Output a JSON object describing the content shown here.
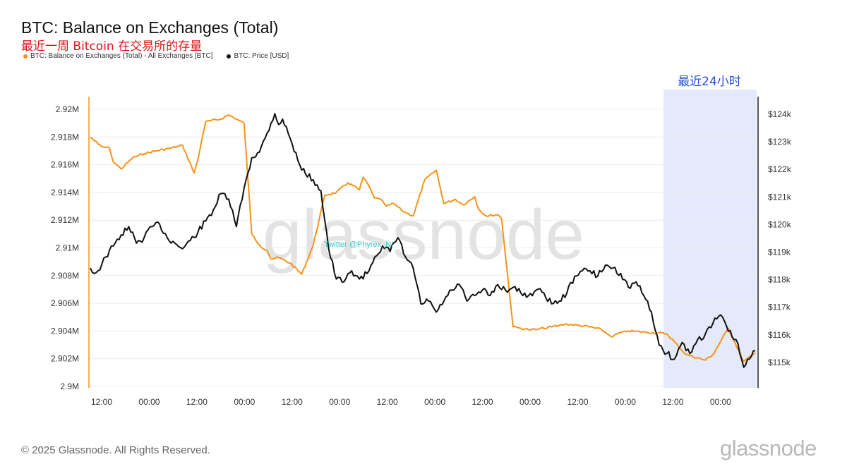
{
  "title": "BTC: Balance on Exchanges (Total)",
  "subtitle": "最近一周 Bitcoin 在交易所的存量",
  "legend": [
    {
      "label": "BTC: Balance on Exchanges (Total) - All Exchanges [BTC]",
      "color": "#f7931a"
    },
    {
      "label": "BTC: Price [USD]",
      "color": "#111111"
    }
  ],
  "highlight_label": "最近24小时",
  "watermark": "glassnode",
  "overlay_text": "Twitter @Phyrex_Ni",
  "footer": "© 2025 Glassnode. All Rights Reserved.",
  "brand": "glassnode",
  "chart_data": {
    "type": "line",
    "x_ticks": [
      "12:00",
      "00:00",
      "12:00",
      "00:00",
      "12:00",
      "00:00",
      "12:00",
      "00:00",
      "12:00",
      "00:00",
      "12:00",
      "00:00",
      "12:00",
      "00:00"
    ],
    "y_left_ticks": [
      "2.92M",
      "2.918M",
      "2.916M",
      "2.914M",
      "2.912M",
      "2.91M",
      "2.908M",
      "2.906M",
      "2.904M",
      "2.902M",
      "2.9M"
    ],
    "y_right_ticks": [
      "$124k",
      "$123k",
      "$122k",
      "$121k",
      "$120k",
      "$119k",
      "$118k",
      "$117k",
      "$116k",
      "$115k"
    ],
    "y_left_range": [
      2900000,
      2920000
    ],
    "y_right_range": [
      114100,
      124100
    ],
    "x_range_hours": [
      0,
      173
    ],
    "grid": true,
    "legend_position": "top-left",
    "series": [
      {
        "name": "BTC: Balance on Exchanges (Total) - All Exchanges [BTC]",
        "axis": "left",
        "color": "#f7931a",
        "x": [
          0,
          2,
          3,
          5,
          6,
          8,
          11,
          14,
          17,
          21,
          24,
          27,
          28,
          29,
          30,
          34,
          36,
          38,
          40,
          42,
          44,
          46,
          47,
          49,
          52,
          55,
          58,
          61,
          64,
          67,
          70,
          71,
          72,
          74,
          76,
          77,
          79,
          81,
          84,
          87,
          90,
          92,
          95,
          97,
          100,
          101,
          103,
          106,
          107,
          110,
          112,
          114,
          116,
          118,
          120,
          122,
          124,
          127,
          130,
          133,
          135,
          136,
          137,
          140,
          145,
          150,
          155,
          160,
          162,
          166,
          170,
          173
        ],
        "y": [
          2918000,
          2917500,
          2917300,
          2917200,
          2916200,
          2915700,
          2916500,
          2916800,
          2917000,
          2917200,
          2917400,
          2915400,
          2916400,
          2917800,
          2919100,
          2919300,
          2919600,
          2919300,
          2919000,
          2911000,
          2910200,
          2909800,
          2909200,
          2909300,
          2908900,
          2908100,
          2910200,
          2913800,
          2914000,
          2914700,
          2914200,
          2915100,
          2914700,
          2913600,
          2913400,
          2913000,
          2913200,
          2912700,
          2912300,
          2914900,
          2915600,
          2913200,
          2913500,
          2913100,
          2913700,
          2912800,
          2912300,
          2912400,
          2912100,
          2904300,
          2904200,
          2904100,
          2904100,
          2904200,
          2904300,
          2904400,
          2904500,
          2904400,
          2904300,
          2904100,
          2903700,
          2903600,
          2903800,
          2904000,
          2903900,
          2903800,
          2902300,
          2901900,
          2902300,
          2904200,
          2901800,
          2902400
        ]
      },
      {
        "name": "BTC: Price [USD]",
        "axis": "right",
        "color": "#111111",
        "x": [
          0,
          1,
          2,
          4,
          6,
          8,
          10,
          12,
          14,
          16,
          18,
          20,
          22,
          24,
          26,
          28,
          30,
          32,
          34,
          36,
          38,
          40,
          42,
          44,
          46,
          48,
          49,
          50,
          52,
          54,
          56,
          58,
          60,
          62,
          64,
          66,
          68,
          70,
          72,
          74,
          76,
          78,
          80,
          82,
          84,
          86,
          88,
          90,
          92,
          94,
          96,
          98,
          100,
          102,
          104,
          106,
          108,
          110,
          112,
          114,
          116,
          118,
          120,
          122,
          124,
          126,
          128,
          130,
          132,
          134,
          136,
          138,
          140,
          142,
          144,
          146,
          148,
          150,
          152,
          154,
          156,
          158,
          160,
          162,
          164,
          166,
          168,
          170,
          172,
          173
        ],
        "y": [
          118400,
          118200,
          118300,
          118800,
          119200,
          119600,
          119900,
          119300,
          119500,
          119900,
          120000,
          119500,
          119300,
          119100,
          119400,
          119700,
          120100,
          120500,
          121100,
          120900,
          119900,
          121300,
          122400,
          122600,
          123300,
          124000,
          123600,
          123800,
          123100,
          122300,
          121800,
          121600,
          121200,
          119100,
          118000,
          117900,
          118300,
          118000,
          118200,
          118800,
          119200,
          119000,
          119500,
          118800,
          118400,
          117100,
          117200,
          116800,
          117200,
          117600,
          117800,
          117200,
          117400,
          117600,
          117400,
          117800,
          117600,
          117700,
          117500,
          117400,
          117600,
          117500,
          117100,
          117200,
          117500,
          118100,
          118300,
          118300,
          118100,
          118500,
          118400,
          118200,
          117700,
          117900,
          117400,
          116800,
          115600,
          115300,
          115100,
          115700,
          115300,
          115800,
          116000,
          116400,
          116700,
          116100,
          115800,
          114800,
          115200,
          115400
        ]
      }
    ]
  }
}
